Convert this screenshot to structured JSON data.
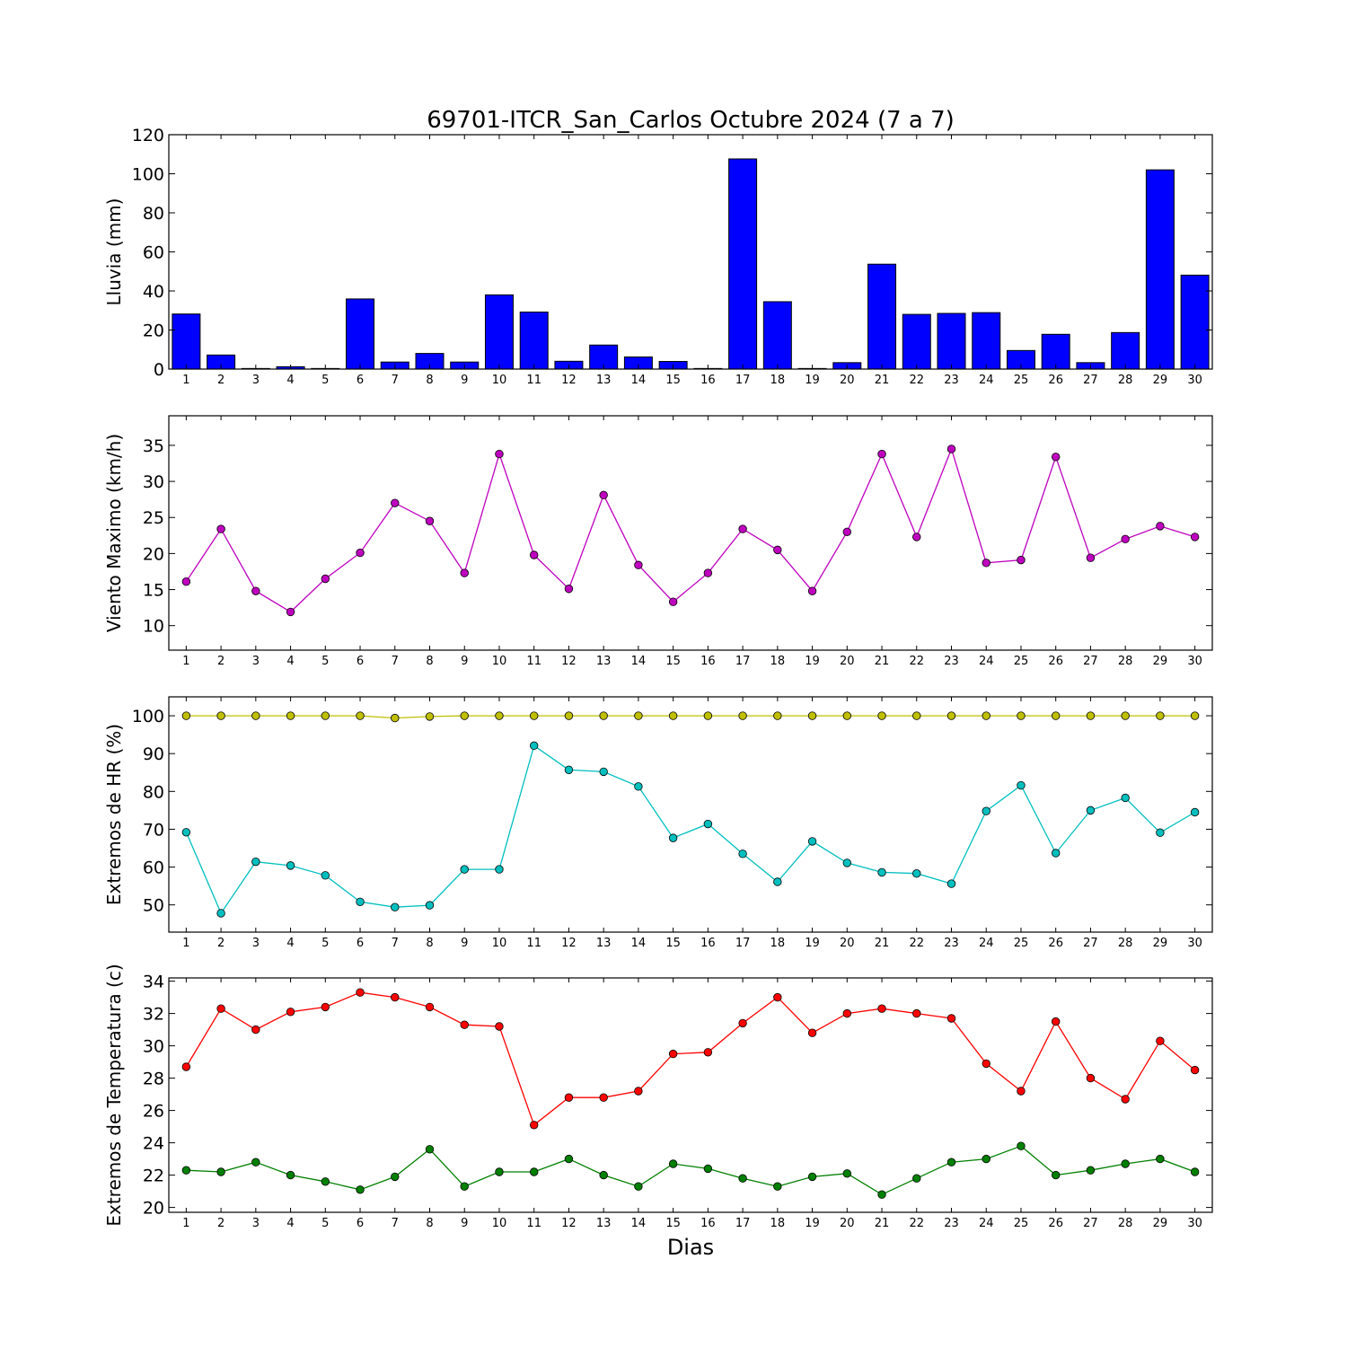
{
  "title": "69701-ITCR_San_Carlos Octubre 2024  (7 a 7)",
  "xlabel": "Dias",
  "chart_data": [
    {
      "type": "bar",
      "ylabel": "Lluvia (mm)",
      "ylim": [
        0,
        120
      ],
      "yticks": [
        0,
        20,
        40,
        60,
        80,
        100,
        120
      ],
      "categories": [
        "1",
        "2",
        "3",
        "4",
        "5",
        "6",
        "7",
        "8",
        "9",
        "10",
        "11",
        "12",
        "13",
        "14",
        "15",
        "16",
        "17",
        "18",
        "19",
        "20",
        "21",
        "22",
        "23",
        "24",
        "25",
        "26",
        "27",
        "28",
        "29",
        "30"
      ],
      "series": [
        {
          "color": "#0000ff",
          "values": [
            28.2,
            7.2,
            0.3,
            1.2,
            0.3,
            35.9,
            3.6,
            8.0,
            3.6,
            38.0,
            29.2,
            4.0,
            12.3,
            6.2,
            3.9,
            0.3,
            107.6,
            34.5,
            0.3,
            3.3,
            53.7,
            28.0,
            28.5,
            28.9,
            9.5,
            17.8,
            3.3,
            18.7,
            102.0,
            48.1
          ]
        }
      ]
    },
    {
      "type": "line",
      "ylabel": "Viento Maximo (km/h)",
      "ylim": [
        6.6,
        39.1
      ],
      "yticks": [
        10,
        15,
        20,
        25,
        30,
        35
      ],
      "x": [
        1,
        2,
        3,
        4,
        5,
        6,
        7,
        8,
        9,
        10,
        11,
        12,
        13,
        14,
        15,
        16,
        17,
        18,
        19,
        20,
        21,
        22,
        23,
        24,
        25,
        26,
        27,
        28,
        29,
        30
      ],
      "series": [
        {
          "color": "#bf00bf",
          "values": [
            16.1,
            23.4,
            14.8,
            11.9,
            16.5,
            20.1,
            27.0,
            24.5,
            17.3,
            33.8,
            19.8,
            15.1,
            28.1,
            18.4,
            13.3,
            17.3,
            23.4,
            20.5,
            14.8,
            23.0,
            33.8,
            22.3,
            34.5,
            18.7,
            19.1,
            33.4,
            19.4,
            22.0,
            23.8,
            22.3
          ]
        }
      ]
    },
    {
      "type": "line",
      "ylabel": "Extremos de HR (%)",
      "ylim": [
        42.8,
        105.0
      ],
      "yticks": [
        50,
        60,
        70,
        80,
        90,
        100
      ],
      "x": [
        1,
        2,
        3,
        4,
        5,
        6,
        7,
        8,
        9,
        10,
        11,
        12,
        13,
        14,
        15,
        16,
        17,
        18,
        19,
        20,
        21,
        22,
        23,
        24,
        25,
        26,
        27,
        28,
        29,
        30
      ],
      "series": [
        {
          "color": "#bfbf00",
          "values": [
            100,
            100,
            100,
            100,
            100,
            100,
            99.4,
            99.8,
            100,
            100,
            100,
            100,
            100,
            100,
            100,
            100,
            100,
            100,
            100,
            100,
            100,
            100,
            100,
            100,
            100,
            100,
            100,
            100,
            100,
            100
          ]
        },
        {
          "color": "#00bfbf",
          "values": [
            69.2,
            47.8,
            61.4,
            60.4,
            57.8,
            50.8,
            49.4,
            49.9,
            59.4,
            59.4,
            92.1,
            85.7,
            85.2,
            81.3,
            67.7,
            71.4,
            63.5,
            56.1,
            66.8,
            61.1,
            58.6,
            58.3,
            55.6,
            74.8,
            81.6,
            63.7,
            75.0,
            78.3,
            69.1,
            74.5
          ]
        }
      ]
    },
    {
      "type": "line",
      "ylabel": "Extremos de Temperatura (c)",
      "ylim": [
        19.7,
        34.2
      ],
      "yticks": [
        20,
        22,
        24,
        26,
        28,
        30,
        32,
        34
      ],
      "x": [
        1,
        2,
        3,
        4,
        5,
        6,
        7,
        8,
        9,
        10,
        11,
        12,
        13,
        14,
        15,
        16,
        17,
        18,
        19,
        20,
        21,
        22,
        23,
        24,
        25,
        26,
        27,
        28,
        29,
        30
      ],
      "series": [
        {
          "color": "#ff0000",
          "values": [
            28.7,
            32.3,
            31.0,
            32.1,
            32.4,
            33.3,
            33.0,
            32.4,
            31.3,
            31.2,
            25.1,
            26.8,
            26.8,
            27.2,
            29.5,
            29.6,
            31.4,
            33.0,
            30.8,
            32.0,
            32.3,
            32.0,
            31.7,
            28.9,
            27.2,
            31.5,
            28.0,
            26.7,
            30.3,
            28.5
          ]
        },
        {
          "color": "#008000",
          "values": [
            22.3,
            22.2,
            22.8,
            22.0,
            21.6,
            21.1,
            21.9,
            23.6,
            21.3,
            22.2,
            22.2,
            23.0,
            22.0,
            21.3,
            22.7,
            22.4,
            21.8,
            21.3,
            21.9,
            22.1,
            20.8,
            21.8,
            22.8,
            23.0,
            23.8,
            22.0,
            22.3,
            22.7,
            23.0,
            22.2
          ]
        }
      ]
    }
  ]
}
